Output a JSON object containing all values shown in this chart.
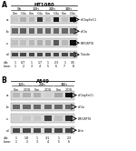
{
  "title_A": "HT1080",
  "title_B": "A549",
  "timepoints_A": [
    "5h",
    "10h",
    "20h",
    "30h"
  ],
  "timepoints_B": [
    "12h",
    "24h",
    "36h"
  ],
  "cond_labels_A": [
    "Con",
    "-Glu",
    "Con",
    "-Glu",
    "Con",
    "-Glu",
    "Con",
    "-Glu"
  ],
  "cond_labels_B": [
    "Con",
    "2-DG",
    "Con",
    "2-DG",
    "Con",
    "2-DG"
  ],
  "row_labels_A": [
    "a",
    "b",
    "c",
    "d"
  ],
  "row_labels_B": [
    "a",
    "b",
    "c",
    "d"
  ],
  "antibodies_A": [
    "eIF2αpSer51",
    "eIF2α",
    "BiP/GRP78",
    "Tubulin"
  ],
  "antibodies_B": [
    "eIF2αpSer51",
    "eIF2α",
    "BiP/GRP78",
    "Actin"
  ],
  "ratio_label": "a/b:",
  "lane_label": "Lane:",
  "ratio_values_A": [
    "1",
    "0.7",
    "1",
    "1.7",
    "1",
    "2.3",
    "1",
    "3.5"
  ],
  "lane_values_A": [
    "1",
    "2",
    "3",
    "4",
    "5",
    "6",
    "7",
    "8"
  ],
  "ratio_values_B": [
    "1",
    "1.8",
    "1",
    "3.1",
    "1",
    "2.3"
  ],
  "lane_values_B": [
    "1",
    "2",
    "3",
    "4",
    "5",
    "6"
  ],
  "row_bg": "#d8d8d8",
  "band_colors_Aa": [
    "#c8c8c8",
    "#b0b0b0",
    "#b8b8b8",
    "#383838",
    "#c0c0c0",
    "#181818",
    "#c0c0c0",
    "#080808"
  ],
  "band_colors_Ab": [
    "#686868",
    "#606060",
    "#686868",
    "#686868",
    "#686868",
    "#686868",
    "#686868",
    "#686868"
  ],
  "band_colors_Ac": [
    "#c0c0c0",
    "#c0c0c0",
    "#b8b8b8",
    "#b0b0b0",
    "#b0b0b0",
    "#585858",
    "#b8b8b8",
    "#101010"
  ],
  "band_colors_Ad": [
    "#484848",
    "#484848",
    "#484848",
    "#484848",
    "#484848",
    "#484848",
    "#484848",
    "#484848"
  ],
  "band_colors_Ba": [
    "#b8b8b8",
    "#b0b0b0",
    "#b0b0b0",
    "#d0d0d0",
    "#a8a8a8",
    "#101010"
  ],
  "band_colors_Bb": [
    "#686868",
    "#686868",
    "#686868",
    "#686868",
    "#686868",
    "#686868"
  ],
  "band_colors_Bc": [
    "#d0d0d0",
    "#c8c8c8",
    "#c8c8c8",
    "#404040",
    "#c0c0c0",
    "#303030"
  ],
  "band_colors_Bd": [
    "#484848",
    "#484848",
    "#484848",
    "#484848",
    "#484848",
    "#484848"
  ]
}
